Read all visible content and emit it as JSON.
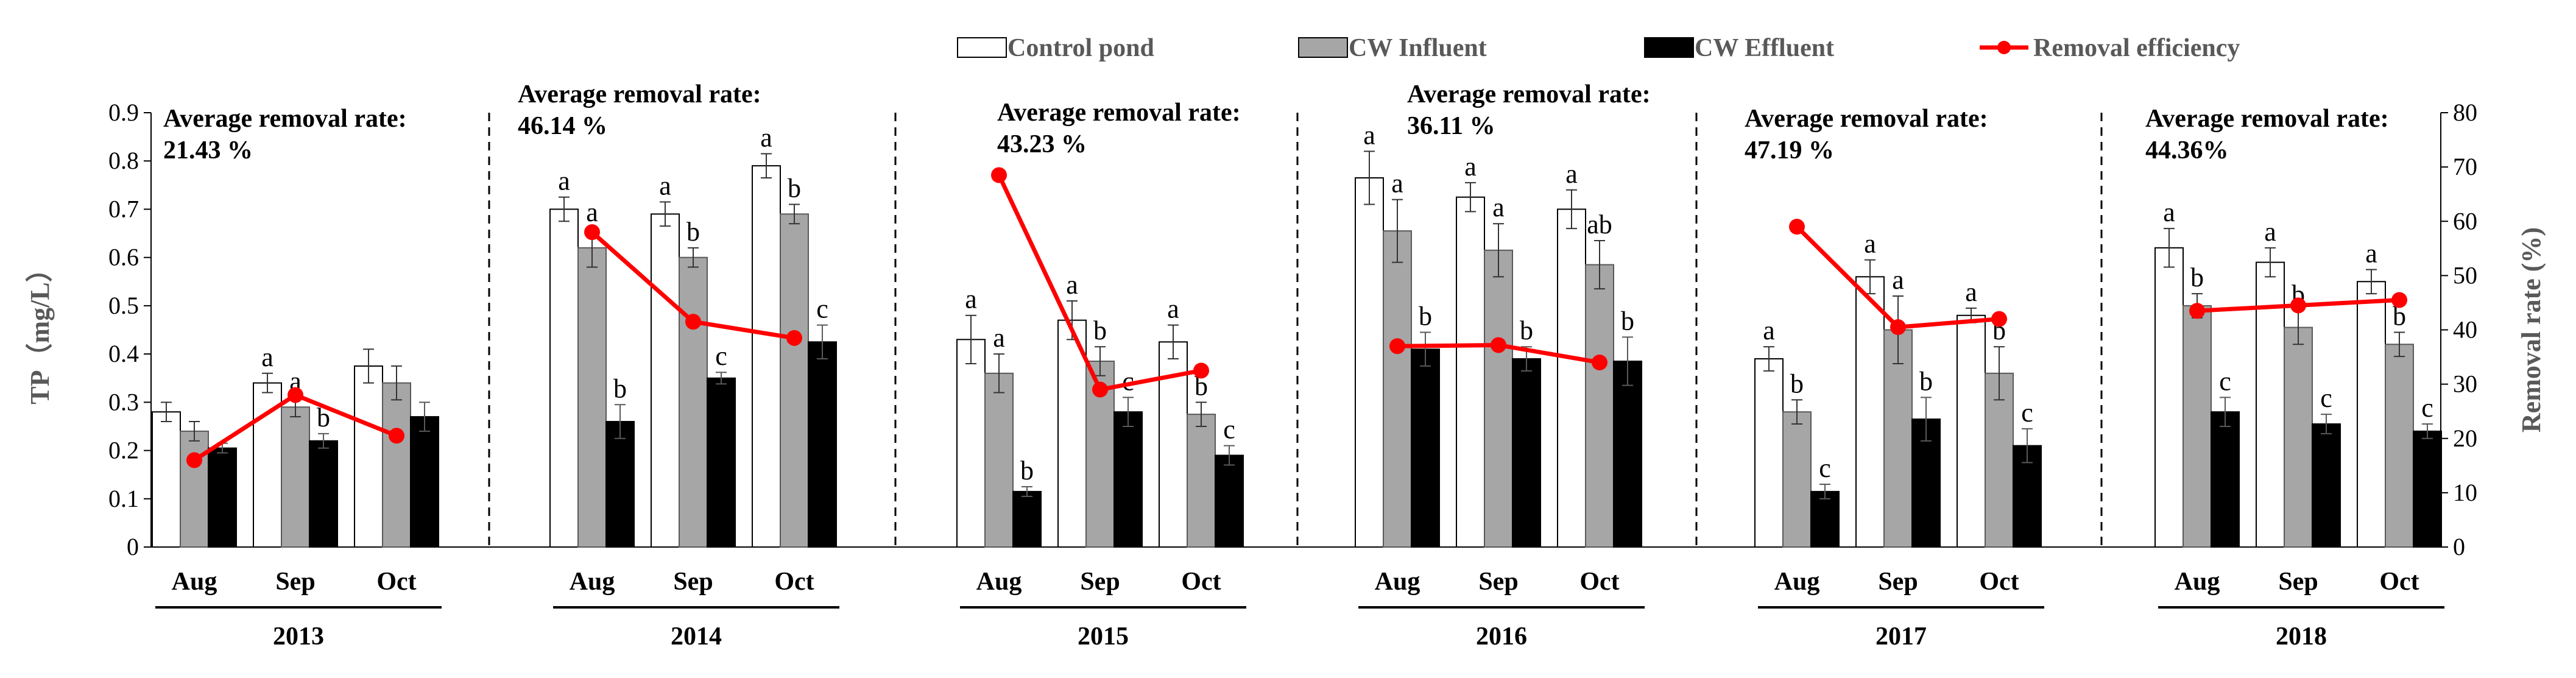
{
  "chart_data": {
    "type": "bar",
    "title": "",
    "ylabel": "TP（mg/L）",
    "y2label": "Removal rate (%)",
    "ylim": [
      0,
      0.9
    ],
    "y2lim": [
      0,
      80
    ],
    "yticks": [
      "0",
      "0.1",
      "0.2",
      "0.3",
      "0.4",
      "0.5",
      "0.6",
      "0.7",
      "0.8",
      "0.9"
    ],
    "y2ticks": [
      "0",
      "10",
      "20",
      "30",
      "40",
      "50",
      "60",
      "70",
      "80"
    ],
    "legend": [
      {
        "name": "Control pond",
        "kind": "bar",
        "color": "#ffffff"
      },
      {
        "name": "CW Influent",
        "kind": "bar",
        "color": "#a6a6a6"
      },
      {
        "name": "CW Effluent",
        "kind": "bar",
        "color": "#000000"
      },
      {
        "name": "Removal efficiency",
        "kind": "line",
        "color": "#ff0000"
      }
    ],
    "years": [
      {
        "year": "2013",
        "note_line1": "Average removal rate:",
        "note_line2": "21.43 %",
        "months": [
          {
            "month": "Aug",
            "values": [
              0.28,
              0.24,
              0.205
            ],
            "errors": [
              0.02,
              0.02,
              0.01
            ],
            "letters": [
              "",
              "",
              ""
            ],
            "removal": 16
          },
          {
            "month": "Sep",
            "values": [
              0.34,
              0.29,
              0.22
            ],
            "errors": [
              0.02,
              0.02,
              0.015
            ],
            "letters": [
              "a",
              "a",
              "b"
            ],
            "removal": 28
          },
          {
            "month": "Oct",
            "values": [
              0.375,
              0.34,
              0.27
            ],
            "errors": [
              0.035,
              0.035,
              0.03
            ],
            "letters": [
              "",
              "",
              ""
            ],
            "removal": 20.5
          }
        ]
      },
      {
        "year": "2014",
        "note_line1": "Average removal rate:",
        "note_line2": "46.14 %",
        "months": [
          {
            "month": "Aug",
            "values": [
              0.7,
              0.62,
              0.26
            ],
            "errors": [
              0.025,
              0.04,
              0.035
            ],
            "letters": [
              "a",
              "a",
              "b"
            ],
            "removal": 58
          },
          {
            "month": "Sep",
            "values": [
              0.69,
              0.6,
              0.35
            ],
            "errors": [
              0.025,
              0.02,
              0.012
            ],
            "letters": [
              "a",
              "b",
              "c"
            ],
            "removal": 41.5
          },
          {
            "month": "Oct",
            "values": [
              0.79,
              0.69,
              0.425
            ],
            "errors": [
              0.025,
              0.02,
              0.035
            ],
            "letters": [
              "a",
              "b",
              "c"
            ],
            "removal": 38.5
          }
        ]
      },
      {
        "year": "2015",
        "note_line1": "Average removal rate:",
        "note_line2": "43.23 %",
        "months": [
          {
            "month": "Aug",
            "values": [
              0.43,
              0.36,
              0.115
            ],
            "errors": [
              0.05,
              0.04,
              0.01
            ],
            "letters": [
              "a",
              "a",
              "b"
            ],
            "removal": 68.5
          },
          {
            "month": "Sep",
            "values": [
              0.47,
              0.385,
              0.28
            ],
            "errors": [
              0.04,
              0.03,
              0.03
            ],
            "letters": [
              "a",
              "b",
              "c"
            ],
            "removal": 29
          },
          {
            "month": "Oct",
            "values": [
              0.425,
              0.275,
              0.19
            ],
            "errors": [
              0.035,
              0.025,
              0.02
            ],
            "letters": [
              "a",
              "b",
              "c"
            ],
            "removal": 32.5
          }
        ]
      },
      {
        "year": "2016",
        "note_line1": "Average removal rate:",
        "note_line2": "36.11 %",
        "months": [
          {
            "month": "Aug",
            "values": [
              0.765,
              0.655,
              0.41
            ],
            "errors": [
              0.055,
              0.065,
              0.035
            ],
            "letters": [
              "a",
              "a",
              "b"
            ],
            "removal": 37
          },
          {
            "month": "Sep",
            "values": [
              0.725,
              0.615,
              0.39
            ],
            "errors": [
              0.03,
              0.055,
              0.025
            ],
            "letters": [
              "a",
              "a",
              "b"
            ],
            "removal": 37.2
          },
          {
            "month": "Oct",
            "values": [
              0.7,
              0.585,
              0.385
            ],
            "errors": [
              0.04,
              0.05,
              0.05
            ],
            "letters": [
              "a",
              "ab",
              "b"
            ],
            "removal": 34
          }
        ]
      },
      {
        "year": "2017",
        "note_line1": "Average removal rate:",
        "note_line2": "47.19 %",
        "months": [
          {
            "month": "Aug",
            "values": [
              0.39,
              0.28,
              0.115
            ],
            "errors": [
              0.025,
              0.025,
              0.015
            ],
            "letters": [
              "a",
              "b",
              "c"
            ],
            "removal": 59
          },
          {
            "month": "Sep",
            "values": [
              0.56,
              0.45,
              0.265
            ],
            "errors": [
              0.035,
              0.07,
              0.045
            ],
            "letters": [
              "a",
              "a",
              "b"
            ],
            "removal": 40.5
          },
          {
            "month": "Oct",
            "values": [
              0.48,
              0.36,
              0.21
            ],
            "errors": [
              0.015,
              0.055,
              0.035
            ],
            "letters": [
              "a",
              "b",
              "c"
            ],
            "removal": 42
          }
        ]
      },
      {
        "year": "2018",
        "note_line1": "Average removal rate:",
        "note_line2": "44.36%",
        "months": [
          {
            "month": "Aug",
            "values": [
              0.62,
              0.5,
              0.28
            ],
            "errors": [
              0.04,
              0.025,
              0.03
            ],
            "letters": [
              "a",
              "b",
              "c"
            ],
            "removal": 43.5
          },
          {
            "month": "Sep",
            "values": [
              0.59,
              0.455,
              0.255
            ],
            "errors": [
              0.03,
              0.035,
              0.02
            ],
            "letters": [
              "a",
              "b",
              "c"
            ],
            "removal": 44.5
          },
          {
            "month": "Oct",
            "values": [
              0.55,
              0.42,
              0.24
            ],
            "errors": [
              0.025,
              0.025,
              0.015
            ],
            "letters": [
              "a",
              "b",
              "c"
            ],
            "removal": 45.5
          }
        ]
      }
    ]
  }
}
